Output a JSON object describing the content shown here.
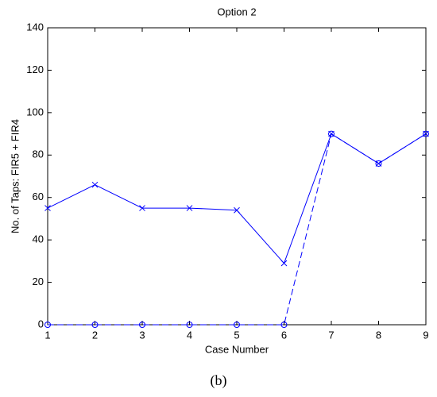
{
  "chart_data": {
    "type": "line",
    "title": "Option 2",
    "xlabel": "Case Number",
    "ylabel": "No. of Taps: FIR5 + FIR4",
    "caption": "(b)",
    "x": [
      1,
      2,
      3,
      4,
      5,
      6,
      7,
      8,
      9
    ],
    "series": [
      {
        "color": "#0000ff",
        "marker": "x",
        "dash": false,
        "values": [
          55,
          66,
          55,
          55,
          54,
          29,
          90,
          76,
          90
        ]
      },
      {
        "color": "#0000ff",
        "marker": "o",
        "dash": true,
        "values": [
          0,
          0,
          0,
          0,
          0,
          0,
          90,
          76,
          90
        ]
      }
    ],
    "xlim": [
      1,
      9
    ],
    "xticks": [
      1,
      2,
      3,
      4,
      5,
      6,
      7,
      8,
      9
    ],
    "ylim": [
      0,
      140
    ],
    "yticks": [
      0,
      20,
      40,
      60,
      80,
      100,
      120,
      140
    ],
    "grid": false
  }
}
